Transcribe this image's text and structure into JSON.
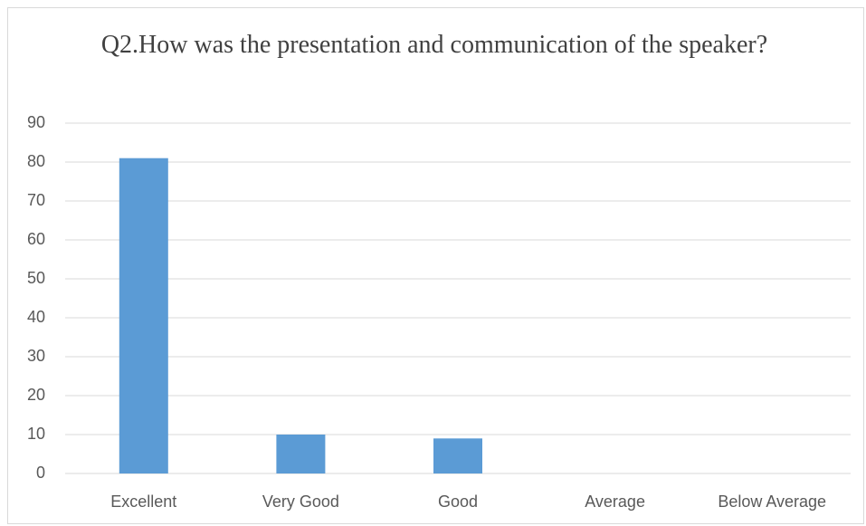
{
  "chart_data": {
    "type": "bar",
    "title": "Q2.How was the presentation and communication of the speaker?",
    "categories": [
      "Excellent",
      "Very Good",
      "Good",
      "Average",
      "Below Average"
    ],
    "values": [
      81,
      10,
      9,
      0,
      0
    ],
    "color": "#5b9bd5",
    "ylim": [
      0,
      90
    ],
    "yticks": [
      0,
      10,
      20,
      30,
      40,
      50,
      60,
      70,
      80,
      90
    ],
    "grid": true
  }
}
